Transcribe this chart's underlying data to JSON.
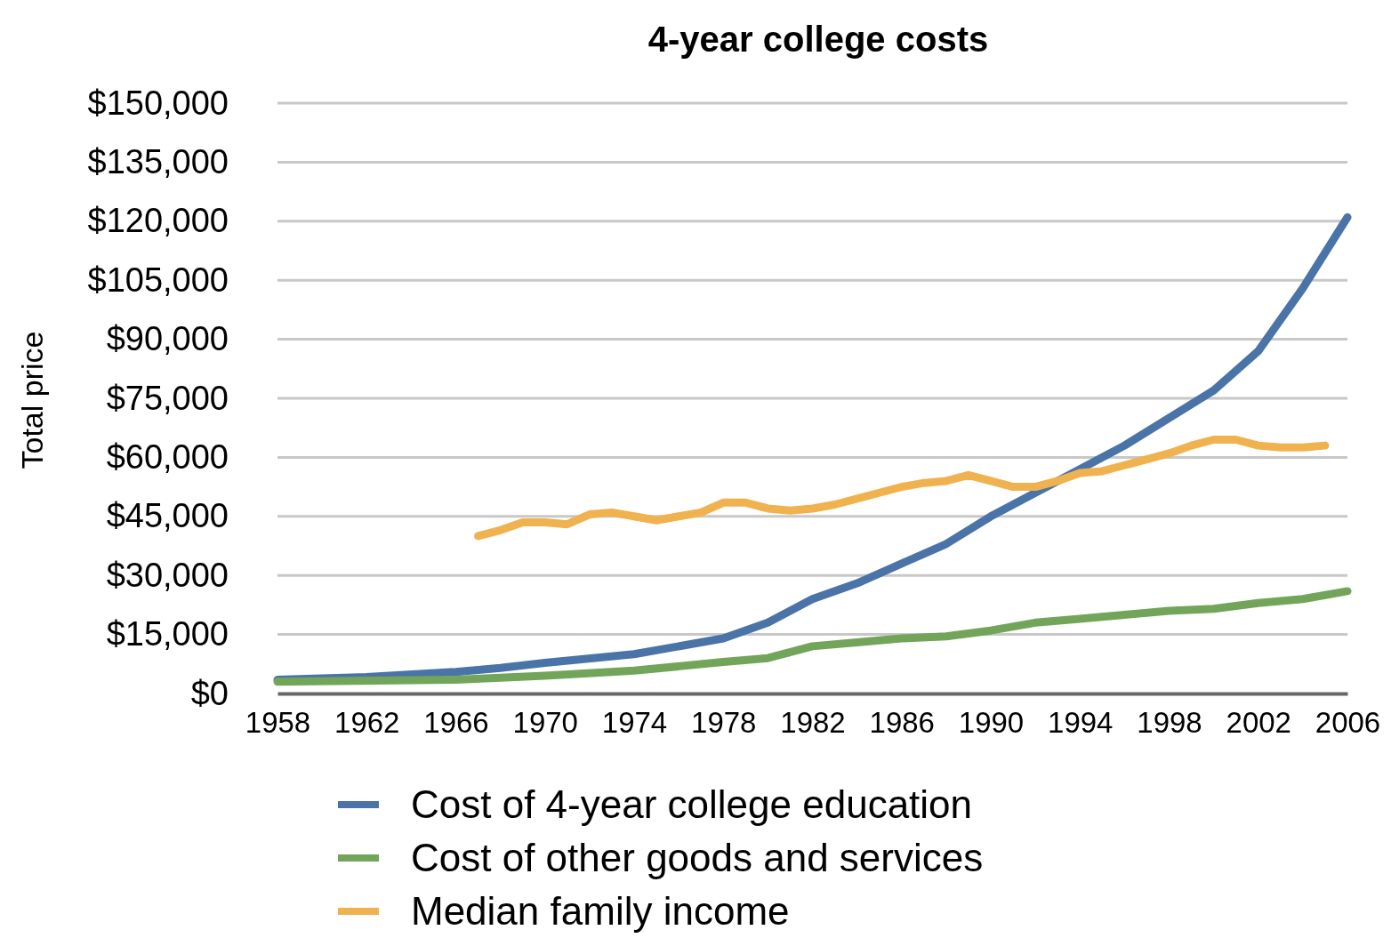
{
  "chart_data": {
    "type": "line",
    "title": "4-year college costs",
    "ylabel": "Total price",
    "xlim": [
      1958,
      2006
    ],
    "xticks": [
      1958,
      1962,
      1966,
      1970,
      1974,
      1978,
      1982,
      1986,
      1990,
      1994,
      1998,
      2002,
      2006
    ],
    "ylim": [
      0,
      150000
    ],
    "yticks": [
      {
        "value": 0,
        "label": "$0"
      },
      {
        "value": 15000,
        "label": "$15,000"
      },
      {
        "value": 30000,
        "label": "$30,000"
      },
      {
        "value": 45000,
        "label": "$45,000"
      },
      {
        "value": 60000,
        "label": "$60,000"
      },
      {
        "value": 75000,
        "label": "$75,000"
      },
      {
        "value": 90000,
        "label": "$90,000"
      },
      {
        "value": 105000,
        "label": "$105,000"
      },
      {
        "value": 120000,
        "label": "$120,000"
      },
      {
        "value": 135000,
        "label": "$135,000"
      },
      {
        "value": 150000,
        "label": "$150,000"
      }
    ],
    "grid": "y",
    "legend": "bottom",
    "marker": "none",
    "line_style": "solid",
    "series": [
      {
        "name": "Cost of 4-year college education",
        "color": "#4a74a8",
        "x": [
          1958,
          1962,
          1966,
          1968,
          1970,
          1974,
          1978,
          1980,
          1982,
          1984,
          1986,
          1988,
          1990,
          1992,
          1994,
          1996,
          1998,
          2000,
          2002,
          2004,
          2006
        ],
        "values": [
          3500,
          4200,
          5500,
          6500,
          7800,
          10000,
          14000,
          18000,
          24000,
          28000,
          33000,
          38000,
          45000,
          51000,
          57000,
          63000,
          70000,
          77000,
          87000,
          103000,
          121000
        ]
      },
      {
        "name": "Cost of other goods and services",
        "color": "#72a55a",
        "x": [
          1958,
          1966,
          1970,
          1974,
          1978,
          1980,
          1982,
          1984,
          1986,
          1988,
          1990,
          1992,
          1994,
          1996,
          1998,
          2000,
          2002,
          2004,
          2006
        ],
        "values": [
          3000,
          3500,
          4500,
          5800,
          8000,
          9000,
          12000,
          13000,
          14000,
          14500,
          16000,
          18000,
          19000,
          20000,
          21000,
          21500,
          23000,
          24000,
          26000
        ]
      },
      {
        "name": "Median family income",
        "color": "#f0b24f",
        "x": [
          1967,
          1968,
          1969,
          1970,
          1971,
          1972,
          1973,
          1974,
          1975,
          1976,
          1977,
          1978,
          1979,
          1980,
          1981,
          1982,
          1983,
          1984,
          1985,
          1986,
          1987,
          1988,
          1989,
          1990,
          1991,
          1992,
          1993,
          1994,
          1995,
          1996,
          1997,
          1998,
          1999,
          2000,
          2001,
          2002,
          2003,
          2004,
          2005
        ],
        "values": [
          40000,
          41500,
          43500,
          43500,
          43000,
          45500,
          46000,
          45000,
          44000,
          45000,
          46000,
          48500,
          48500,
          47000,
          46500,
          47000,
          48000,
          49500,
          51000,
          52500,
          53500,
          54000,
          55500,
          54000,
          52500,
          52500,
          54000,
          56000,
          56500,
          58000,
          59500,
          61000,
          63000,
          64500,
          64500,
          63000,
          62500,
          62500,
          63000
        ]
      }
    ]
  }
}
